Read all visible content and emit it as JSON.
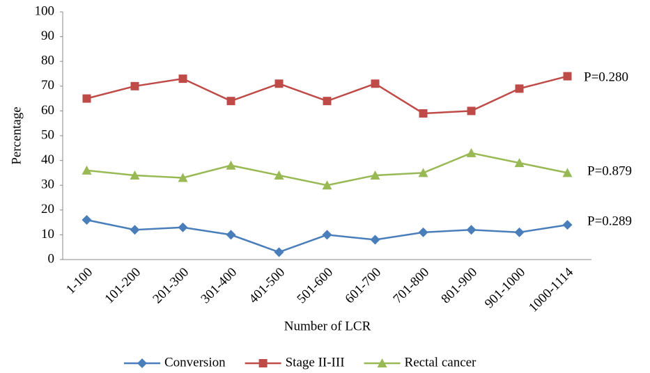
{
  "chart_data": {
    "type": "line",
    "x_label": "Number of LCR",
    "y_label": "Percentage",
    "categories": [
      "1-100",
      "101-200",
      "201-300",
      "301-400",
      "401-500",
      "501-600",
      "601-700",
      "701-800",
      "801-900",
      "901-1000",
      "1000-1114"
    ],
    "series": [
      {
        "name": "Conversion",
        "color": "#4a7ebb",
        "marker": "diamond",
        "values": [
          16,
          12,
          13,
          10,
          3,
          10,
          8,
          11,
          12,
          11,
          14
        ]
      },
      {
        "name": "Stage II-III",
        "color": "#be4b48",
        "marker": "square",
        "values": [
          65,
          70,
          73,
          64,
          71,
          64,
          71,
          59,
          60,
          69,
          74
        ]
      },
      {
        "name": "Rectal cancer",
        "color": "#98b954",
        "marker": "triangle",
        "values": [
          36,
          34,
          33,
          38,
          34,
          30,
          34,
          35,
          43,
          39,
          35
        ]
      }
    ],
    "annotations": [
      "P=0.289",
      "P=0.280",
      "P=0.879"
    ],
    "ylim": [
      0,
      100
    ],
    "yticks": [
      0,
      10,
      20,
      30,
      40,
      50,
      60,
      70,
      80,
      90,
      100
    ],
    "grid": false,
    "legend": "bottom"
  }
}
